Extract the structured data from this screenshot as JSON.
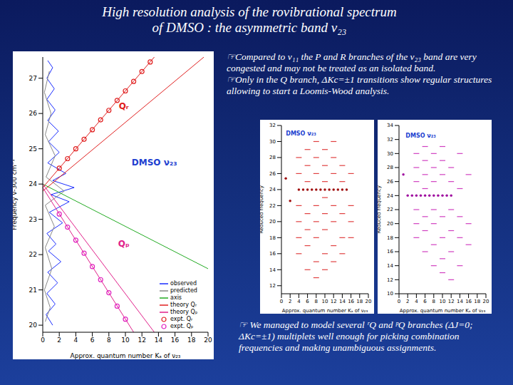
{
  "slide": {
    "title": [
      "High resolution analysis of the rovibrational spectrum",
      "of DMSO : the asymmetric band ν₂₃"
    ],
    "bullets": [
      "☞Compared to ν₁₁ the P and R branches of the ν₂₃ band are very congested and may not be treated as an isolated band.",
      "☞Only in the Q branch, ΔKc=±1 transitions show regular structures allowing to start a Loomis-Wood analysis."
    ],
    "footer": "☞ We managed to model several ʳQ and ᵖQ branches (ΔJ=0; ΔKc=±1) multiplets well enough for picking combination frequencies and making unambiguous assignments."
  },
  "chart_data": [
    {
      "type": "line",
      "x_label": "Approx. quantum number Kₐ of ν₂₃",
      "y_label": "Frequency ν-300 cm⁻¹",
      "xlim": [
        0,
        20
      ],
      "xticks": [
        0,
        2,
        4,
        6,
        8,
        10,
        12,
        14,
        16,
        18,
        20
      ],
      "ylim": [
        19.8,
        27.6
      ],
      "yticks": [
        20,
        21,
        22,
        23,
        24,
        25,
        26,
        27
      ],
      "legend": "lower right",
      "series": [
        {
          "name": "observed",
          "color": "#1a2cff",
          "type": "line",
          "line_style": "solid",
          "points": [
            [
              1.2,
              20.0
            ],
            [
              0.4,
              20.3
            ],
            [
              1.5,
              20.6
            ],
            [
              0.5,
              20.9
            ],
            [
              1.8,
              21.2
            ],
            [
              0.6,
              21.5
            ],
            [
              2.2,
              21.8
            ],
            [
              0.7,
              22.1
            ],
            [
              1.6,
              22.3
            ],
            [
              0.5,
              22.6
            ],
            [
              2.4,
              22.9
            ],
            [
              0.8,
              23.2
            ],
            [
              3.2,
              23.5
            ],
            [
              1.0,
              23.7
            ],
            [
              3.8,
              23.9
            ],
            [
              1.2,
              24.1
            ],
            [
              2.8,
              24.3
            ],
            [
              0.6,
              24.6
            ],
            [
              2.0,
              24.9
            ],
            [
              0.7,
              25.2
            ],
            [
              1.9,
              25.5
            ],
            [
              0.6,
              25.8
            ],
            [
              1.5,
              26.1
            ],
            [
              0.5,
              26.4
            ],
            [
              1.4,
              26.7
            ],
            [
              0.5,
              27.0
            ],
            [
              1.2,
              27.3
            ],
            [
              0.6,
              27.5
            ]
          ]
        },
        {
          "name": "predicted",
          "color": "#888888",
          "type": "line",
          "line_style": "solid",
          "points": [
            [
              0.3,
              20.1
            ],
            [
              0.9,
              20.5
            ],
            [
              0.2,
              21.0
            ],
            [
              1.1,
              21.6
            ],
            [
              0.3,
              22.2
            ],
            [
              1.4,
              22.8
            ],
            [
              0.3,
              23.4
            ],
            [
              2.6,
              23.8
            ],
            [
              0.4,
              24.2
            ],
            [
              1.5,
              24.8
            ],
            [
              0.3,
              25.4
            ],
            [
              1.0,
              26.0
            ],
            [
              0.2,
              26.6
            ],
            [
              0.8,
              27.2
            ]
          ]
        },
        {
          "name": "axis",
          "color": "#22aa22",
          "type": "line",
          "line_style": "solid",
          "points": [
            [
              0,
              24.0
            ],
            [
              20,
              21.6
            ]
          ]
        },
        {
          "name": "theory Qᵣ",
          "color": "#e02020",
          "type": "line",
          "line_style": "solid",
          "points": [
            [
              0,
              23.9
            ],
            [
              13.5,
              27.6
            ]
          ]
        },
        {
          "color": "#e02020",
          "type": "line",
          "line_style": "solid",
          "points": [
            [
              0,
              23.8
            ],
            [
              19.5,
              27.6
            ]
          ]
        },
        {
          "name": "theory Qₚ",
          "color": "#e0208a",
          "type": "line",
          "line_style": "solid",
          "points": [
            [
              0,
              23.9
            ],
            [
              11,
              19.8
            ]
          ]
        },
        {
          "color": "#e0208a",
          "type": "line",
          "line_style": "solid",
          "points": [
            [
              0,
              24.0
            ],
            [
              13.5,
              19.8
            ]
          ]
        },
        {
          "name": "expt. Qᵣ",
          "color": "#e02020",
          "type": "scatter",
          "marker": "circle",
          "points": [
            [
              2,
              24.45
            ],
            [
              3,
              24.72
            ],
            [
              4,
              25.0
            ],
            [
              5,
              25.27
            ],
            [
              6,
              25.54
            ],
            [
              7,
              25.82
            ],
            [
              8,
              26.09
            ],
            [
              9,
              26.37
            ],
            [
              10,
              26.64
            ],
            [
              11,
              26.91
            ],
            [
              12,
              27.19
            ],
            [
              13,
              27.46
            ]
          ]
        },
        {
          "name": "expt. Qₚ",
          "color": "#e020c0",
          "type": "scatter",
          "marker": "circle",
          "points": [
            [
              2,
              23.15
            ],
            [
              3,
              22.78
            ],
            [
              4,
              22.41
            ],
            [
              5,
              22.04
            ],
            [
              6,
              21.66
            ],
            [
              7,
              21.29
            ],
            [
              8,
              20.92
            ],
            [
              9,
              20.54
            ],
            [
              10,
              20.17
            ]
          ]
        }
      ],
      "annotations": [
        {
          "text": "Qᵣ",
          "x": 9.8,
          "y": 26.2
        },
        {
          "text": "Qₚ",
          "x": 9.8,
          "y": 22.3
        },
        {
          "text": "DMSO ν₂₃",
          "x": 13.5,
          "y": 24.6
        }
      ]
    },
    {
      "type": "scatter",
      "x_label": "Approx. quantum number Kₐ of ν₂₃",
      "y_label": "Reduced frequency",
      "xlim": [
        0,
        20
      ],
      "xticks": [
        0,
        2,
        4,
        6,
        8,
        10,
        12,
        14,
        16,
        18,
        20
      ],
      "ylim": [
        11,
        32
      ],
      "yticks": [
        12,
        14,
        16,
        18,
        20,
        22,
        24,
        26,
        28,
        30,
        32
      ],
      "series": [
        {
          "color": "#e04040",
          "type": "scatter",
          "marker": "dash",
          "points": [
            [
              4,
              16
            ],
            [
              4,
              18
            ],
            [
              4,
              20
            ],
            [
              4,
              22
            ],
            [
              4,
              26
            ],
            [
              4,
              28
            ],
            [
              6,
              14
            ],
            [
              6,
              17
            ],
            [
              6,
              19
            ],
            [
              6,
              21
            ],
            [
              6,
              25
            ],
            [
              6,
              27
            ],
            [
              6,
              29
            ],
            [
              8,
              13
            ],
            [
              8,
              15
            ],
            [
              8,
              18
            ],
            [
              8,
              20
            ],
            [
              8,
              22
            ],
            [
              8,
              26
            ],
            [
              8,
              28
            ],
            [
              8,
              30
            ],
            [
              10,
              14
            ],
            [
              10,
              16
            ],
            [
              10,
              19
            ],
            [
              10,
              21
            ],
            [
              10,
              23
            ],
            [
              10,
              25
            ],
            [
              10,
              27
            ],
            [
              10,
              29
            ],
            [
              12,
              15
            ],
            [
              12,
              17
            ],
            [
              12,
              20
            ],
            [
              12,
              22
            ],
            [
              12,
              26
            ],
            [
              12,
              28
            ],
            [
              12,
              30
            ],
            [
              14,
              16
            ],
            [
              14,
              18
            ],
            [
              14,
              21
            ],
            [
              14,
              25
            ],
            [
              14,
              27
            ],
            [
              16,
              18
            ],
            [
              16,
              20
            ],
            [
              16,
              22
            ],
            [
              16,
              26
            ]
          ]
        },
        {
          "color": "#a01010",
          "type": "scatter",
          "marker": "dot",
          "points": [
            [
              1,
              25.4
            ],
            [
              2,
              22.6
            ],
            [
              4,
              24
            ],
            [
              5,
              24
            ],
            [
              6,
              24
            ],
            [
              7,
              24
            ],
            [
              8,
              24
            ],
            [
              9,
              24
            ],
            [
              10,
              24
            ],
            [
              11,
              24
            ],
            [
              12,
              24
            ],
            [
              13,
              24
            ],
            [
              14,
              24
            ],
            [
              15,
              24
            ]
          ]
        }
      ],
      "annotations": [
        {
          "text": "DMSO ν₂₃",
          "x": 4.5,
          "y": 31
        }
      ]
    },
    {
      "type": "scatter",
      "x_label": "Approx. quantum number Kₐ of ν₂₃",
      "y_label": "Reduced frequency",
      "xlim": [
        0,
        20
      ],
      "xticks": [
        0,
        2,
        4,
        6,
        8,
        10,
        12,
        14,
        16,
        18,
        20
      ],
      "ylim": [
        10,
        34
      ],
      "yticks": [
        10,
        12,
        14,
        16,
        18,
        20,
        22,
        24,
        26,
        28,
        30,
        32,
        34
      ],
      "series": [
        {
          "color": "#d040c0",
          "type": "scatter",
          "marker": "dash",
          "points": [
            [
              4,
              18
            ],
            [
              4,
              20
            ],
            [
              4,
              22
            ],
            [
              4,
              26
            ],
            [
              4,
              28
            ],
            [
              4,
              30
            ],
            [
              6,
              16
            ],
            [
              6,
              19
            ],
            [
              6,
              21
            ],
            [
              6,
              25
            ],
            [
              6,
              27
            ],
            [
              6,
              29
            ],
            [
              6,
              31
            ],
            [
              8,
              14
            ],
            [
              8,
              17
            ],
            [
              8,
              20
            ],
            [
              8,
              22
            ],
            [
              8,
              26
            ],
            [
              8,
              28
            ],
            [
              8,
              30
            ],
            [
              10,
              13
            ],
            [
              10,
              15
            ],
            [
              10,
              18
            ],
            [
              10,
              21
            ],
            [
              10,
              27
            ],
            [
              10,
              29
            ],
            [
              10,
              31
            ],
            [
              12,
              12
            ],
            [
              12,
              16
            ],
            [
              12,
              19
            ],
            [
              12,
              22
            ],
            [
              12,
              26
            ],
            [
              12,
              28
            ],
            [
              14,
              14
            ],
            [
              14,
              18
            ],
            [
              14,
              21
            ],
            [
              14,
              25
            ],
            [
              14,
              30
            ],
            [
              16,
              17
            ],
            [
              16,
              20
            ],
            [
              16,
              27
            ]
          ]
        },
        {
          "color": "#a010a0",
          "type": "scatter",
          "marker": "dot",
          "points": [
            [
              1,
              27
            ],
            [
              2,
              24
            ],
            [
              3,
              24
            ],
            [
              4,
              24
            ],
            [
              5,
              24
            ],
            [
              6,
              24
            ],
            [
              7,
              24
            ],
            [
              8,
              24
            ],
            [
              9,
              24
            ],
            [
              10,
              24
            ],
            [
              11,
              24
            ],
            [
              12,
              24
            ]
          ]
        }
      ],
      "annotations": [
        {
          "text": "DMSO ν₂₃",
          "x": 5,
          "y": 32.5
        }
      ]
    }
  ]
}
